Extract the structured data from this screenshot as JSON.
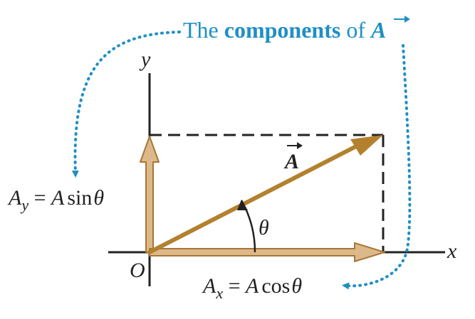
{
  "caption": {
    "prefix": "The ",
    "bold": "components",
    "middle": " of ",
    "vector": "A"
  },
  "axes": {
    "x_label": "x",
    "y_label": "y",
    "origin_label": "O"
  },
  "vector_label": "A",
  "angle_label": "θ",
  "ay_formula": {
    "lhs_main": "A",
    "lhs_sub": "y",
    "equals": " = ",
    "rhs_a": "A",
    "rhs_func": "sin",
    "rhs_angle": "θ"
  },
  "ax_formula": {
    "lhs_main": "A",
    "lhs_sub": "x",
    "equals": " = ",
    "rhs_a": "A",
    "rhs_func": "cos",
    "rhs_angle": "θ"
  },
  "colors": {
    "vector": "#b3812e",
    "component_fill": "#dcb98a",
    "component_edge": "#a87636",
    "callout": "#1f8fc4",
    "axis": "#222222"
  }
}
